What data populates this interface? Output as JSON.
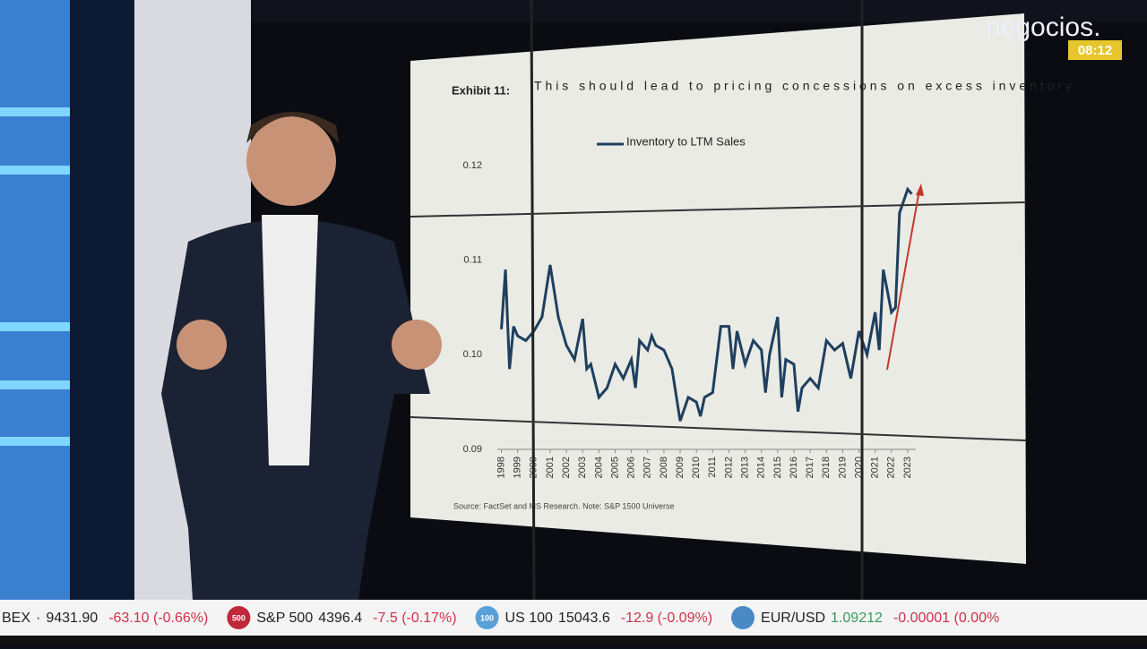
{
  "brand": {
    "name": "negocios.",
    "time": "08:12"
  },
  "chart_data": {
    "type": "line",
    "exhibit": "Exhibit 11:",
    "title": "This should lead to pricing concessions on excess inventory",
    "source": "Source: FactSet and MS Research. Note: S&P 1500 Universe",
    "x": [
      1998,
      1998.25,
      1998.5,
      1998.75,
      1999,
      1999.5,
      2000,
      2000.5,
      2001,
      2001.5,
      2002,
      2002.5,
      2003,
      2003.25,
      2003.5,
      2004,
      2004.5,
      2005,
      2005.5,
      2006,
      2006.25,
      2006.5,
      2007,
      2007.25,
      2007.5,
      2008,
      2008.5,
      2009,
      2009.5,
      2010,
      2010.25,
      2010.5,
      2011,
      2011.5,
      2012,
      2012.25,
      2012.5,
      2013,
      2013.5,
      2014,
      2014.25,
      2014.5,
      2015,
      2015.25,
      2015.5,
      2016,
      2016.25,
      2016.5,
      2017,
      2017.5,
      2018,
      2018.5,
      2019,
      2019.5,
      2020,
      2020.5,
      2021,
      2021.25,
      2021.5,
      2022,
      2022.25,
      2022.5,
      2023,
      2023.25
    ],
    "series": [
      {
        "name": "Inventory to LTM Sales",
        "color": "#1f3f5f",
        "values": [
          0.1027,
          0.109,
          0.0985,
          0.103,
          0.102,
          0.1015,
          0.1025,
          0.104,
          0.1095,
          0.104,
          0.101,
          0.0995,
          0.1038,
          0.0985,
          0.099,
          0.0955,
          0.0965,
          0.099,
          0.0975,
          0.0995,
          0.0965,
          0.1015,
          0.1005,
          0.102,
          0.101,
          0.1005,
          0.0985,
          0.093,
          0.0955,
          0.095,
          0.0935,
          0.0955,
          0.096,
          0.103,
          0.103,
          0.0985,
          0.1025,
          0.099,
          0.1015,
          0.1005,
          0.096,
          0.1,
          0.104,
          0.0955,
          0.0995,
          0.099,
          0.094,
          0.0965,
          0.0975,
          0.0965,
          0.1015,
          0.1005,
          0.1012,
          0.0975,
          0.1025,
          0.1,
          0.1045,
          0.1005,
          0.109,
          0.1045,
          0.105,
          0.115,
          0.1175,
          0.117
        ]
      }
    ],
    "xlim": [
      1997.75,
      2023.5
    ],
    "xticks": [
      1998,
      1999,
      2000,
      2001,
      2002,
      2003,
      2004,
      2005,
      2006,
      2007,
      2008,
      2009,
      2010,
      2011,
      2012,
      2013,
      2014,
      2015,
      2016,
      2017,
      2018,
      2019,
      2020,
      2021,
      2022,
      2023
    ],
    "ylim": [
      0.09,
      0.12
    ],
    "yticks": [
      0.09,
      {
        "value": 0.1,
        "label": "0.10"
      },
      0.11,
      0.12
    ]
  },
  "ticker": [
    {
      "name": "BEX",
      "sep": "·",
      "value": "9431.90",
      "change": "-63.10 (-0.66%)"
    },
    {
      "badge": "500",
      "name": "S&P 500",
      "value": "4396.4",
      "change": "-7.5 (-0.17%)"
    },
    {
      "badge": "100",
      "name": "US 100",
      "value": "15043.6",
      "change": "-12.9 (-0.09%)"
    },
    {
      "name": "EUR/USD",
      "value": "1.09212",
      "change": "-0.00001 (0.00%"
    }
  ]
}
